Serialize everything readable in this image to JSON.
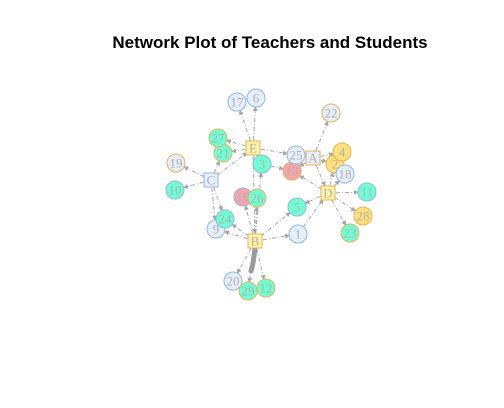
{
  "title": "Network Plot of Teachers and Students",
  "colors": {
    "edge": "#a6a6a6",
    "label": "#b0b0b0",
    "teacher_fill": "#ddeeff",
    "teacher_border": "#8fb8e0",
    "fills": {
      "blue": "#e6eefa",
      "yellow": "#ffe07a",
      "green": "#6fffd2",
      "pink": "#f7a3ad",
      "lightyellow": "#fff3a8"
    },
    "borders": {
      "blue": "#8fb8e0",
      "orange": "#e5b35a",
      "green": "#c8c84a"
    }
  },
  "nodes": [
    {
      "id": "A",
      "shape": "square",
      "fill": "blue",
      "border": "orange"
    },
    {
      "id": "B",
      "shape": "square",
      "fill": "lightyellow",
      "border": "orange"
    },
    {
      "id": "C",
      "shape": "square",
      "fill": "blue",
      "border": "blue"
    },
    {
      "id": "D",
      "shape": "square",
      "fill": "lightyellow",
      "border": "orange"
    },
    {
      "id": "E",
      "shape": "square",
      "fill": "lightyellow",
      "border": "orange"
    },
    {
      "id": "1",
      "shape": "circle",
      "fill": "blue",
      "border": "blue"
    },
    {
      "id": "2",
      "shape": "circle",
      "fill": "yellow",
      "border": "orange"
    },
    {
      "id": "3",
      "shape": "circle",
      "fill": "green",
      "border": "blue"
    },
    {
      "id": "4",
      "shape": "circle",
      "fill": "yellow",
      "border": "orange"
    },
    {
      "id": "5",
      "shape": "circle",
      "fill": "green",
      "border": "blue"
    },
    {
      "id": "6",
      "shape": "circle",
      "fill": "blue",
      "border": "blue"
    },
    {
      "id": "9",
      "shape": "circle",
      "fill": "blue",
      "border": "blue"
    },
    {
      "id": "10",
      "shape": "circle",
      "fill": "green",
      "border": "blue"
    },
    {
      "id": "11",
      "shape": "circle",
      "fill": "green",
      "border": "blue"
    },
    {
      "id": "12",
      "shape": "circle",
      "fill": "green",
      "border": "orange"
    },
    {
      "id": "13",
      "shape": "circle",
      "fill": "pink",
      "border": "orange"
    },
    {
      "id": "16",
      "shape": "circle",
      "fill": "pink",
      "border": "blue"
    },
    {
      "id": "17",
      "shape": "circle",
      "fill": "blue",
      "border": "blue"
    },
    {
      "id": "18",
      "shape": "circle",
      "fill": "blue",
      "border": "blue"
    },
    {
      "id": "19",
      "shape": "circle",
      "fill": "blue",
      "border": "orange"
    },
    {
      "id": "20",
      "shape": "circle",
      "fill": "blue",
      "border": "blue"
    },
    {
      "id": "21",
      "shape": "circle",
      "fill": "green",
      "border": "orange"
    },
    {
      "id": "22",
      "shape": "circle",
      "fill": "blue",
      "border": "orange"
    },
    {
      "id": "23",
      "shape": "circle",
      "fill": "green",
      "border": "orange"
    },
    {
      "id": "24",
      "shape": "circle",
      "fill": "green",
      "border": "blue"
    },
    {
      "id": "25",
      "shape": "circle",
      "fill": "blue",
      "border": "blue"
    },
    {
      "id": "26",
      "shape": "circle",
      "fill": "green",
      "border": "orange"
    },
    {
      "id": "27",
      "shape": "circle",
      "fill": "green",
      "border": "orange"
    },
    {
      "id": "28",
      "shape": "circle",
      "fill": "yellow",
      "border": "orange"
    },
    {
      "id": "29",
      "shape": "circle",
      "fill": "green",
      "border": "orange"
    }
  ],
  "edges": [
    [
      "E",
      "17"
    ],
    [
      "E",
      "6"
    ],
    [
      "E",
      "27"
    ],
    [
      "E",
      "21"
    ],
    [
      "E",
      "3"
    ],
    [
      "E",
      "25"
    ],
    [
      "E",
      "B"
    ],
    [
      "C",
      "19"
    ],
    [
      "C",
      "10"
    ],
    [
      "C",
      "21"
    ],
    [
      "C",
      "9"
    ],
    [
      "C",
      "24"
    ],
    [
      "C",
      "E"
    ],
    [
      "A",
      "22"
    ],
    [
      "A",
      "4"
    ],
    [
      "A",
      "2"
    ],
    [
      "A",
      "13"
    ],
    [
      "A",
      "25"
    ],
    [
      "A",
      "D"
    ],
    [
      "D",
      "18"
    ],
    [
      "D",
      "11"
    ],
    [
      "D",
      "28"
    ],
    [
      "D",
      "23"
    ],
    [
      "D",
      "5"
    ],
    [
      "D",
      "2"
    ],
    [
      "D",
      "13"
    ],
    [
      "B",
      "16"
    ],
    [
      "B",
      "26"
    ],
    [
      "B",
      "24"
    ],
    [
      "B",
      "9"
    ],
    [
      "B",
      "5"
    ],
    [
      "B",
      "1"
    ],
    [
      "B",
      "20"
    ],
    [
      "B",
      "29"
    ],
    [
      "B",
      "12"
    ],
    [
      "B",
      "3"
    ],
    [
      "3",
      "13"
    ],
    [
      "1",
      "D"
    ]
  ]
}
